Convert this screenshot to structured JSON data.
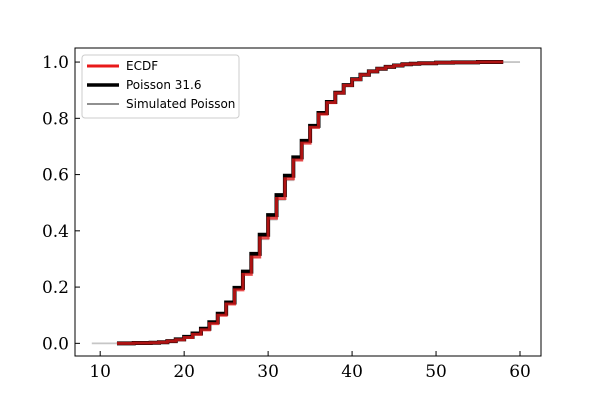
{
  "chart_data": {
    "type": "line",
    "title": "",
    "xlabel": "",
    "ylabel": "",
    "xlim": [
      7,
      62.5
    ],
    "ylim": [
      -0.045,
      1.05
    ],
    "xticks": [
      10,
      20,
      30,
      40,
      50,
      60
    ],
    "yticks": [
      0.0,
      0.2,
      0.4,
      0.6,
      0.8,
      1.0
    ],
    "xtick_labels": [
      "10",
      "20",
      "30",
      "40",
      "50",
      "60"
    ],
    "ytick_labels": [
      "0.0",
      "0.2",
      "0.4",
      "0.6",
      "0.8",
      "1.0"
    ],
    "grid": false,
    "legend_position": "top-left",
    "poisson_mean": 31.6,
    "series": [
      {
        "name": "Simulated Poisson",
        "color": "#808080",
        "style": "step",
        "x": [
          9,
          12,
          14,
          16,
          17,
          18,
          19,
          20,
          21,
          22,
          23,
          24,
          25,
          26,
          27,
          28,
          29,
          30,
          31,
          32,
          33,
          34,
          35,
          36,
          37,
          38,
          39,
          40,
          41,
          42,
          43,
          44,
          45,
          46,
          47,
          48,
          50,
          52,
          55,
          60
        ],
        "y": [
          0.0,
          0.0005,
          0.001,
          0.002,
          0.004,
          0.008,
          0.014,
          0.022,
          0.033,
          0.05,
          0.07,
          0.1,
          0.14,
          0.19,
          0.245,
          0.305,
          0.37,
          0.44,
          0.51,
          0.58,
          0.65,
          0.71,
          0.765,
          0.815,
          0.858,
          0.893,
          0.92,
          0.942,
          0.958,
          0.97,
          0.979,
          0.986,
          0.99,
          0.993,
          0.995,
          0.997,
          0.998,
          0.999,
          1.0,
          1.0
        ]
      },
      {
        "name": "Poisson 31.6",
        "color": "#000000",
        "style": "step",
        "x": [
          12,
          14,
          16,
          17,
          18,
          19,
          20,
          21,
          22,
          23,
          24,
          25,
          26,
          27,
          28,
          29,
          30,
          31,
          32,
          33,
          34,
          35,
          36,
          37,
          38,
          39,
          40,
          41,
          42,
          43,
          44,
          45,
          46,
          47,
          48,
          50,
          52,
          55,
          58
        ],
        "y": [
          0.0,
          0.001,
          0.002,
          0.004,
          0.008,
          0.014,
          0.023,
          0.035,
          0.052,
          0.075,
          0.105,
          0.145,
          0.197,
          0.255,
          0.318,
          0.386,
          0.456,
          0.527,
          0.596,
          0.661,
          0.72,
          0.773,
          0.819,
          0.858,
          0.891,
          0.918,
          0.939,
          0.955,
          0.967,
          0.976,
          0.983,
          0.988,
          0.992,
          0.994,
          0.996,
          0.998,
          0.999,
          1.0,
          1.0
        ]
      },
      {
        "name": "ECDF",
        "color": "#e8191a",
        "style": "step",
        "x": [
          12,
          14,
          16,
          17,
          18,
          19,
          20,
          21,
          22,
          23,
          24,
          25,
          26,
          27,
          28,
          29,
          30,
          31,
          32,
          33,
          34,
          35,
          36,
          37,
          38,
          39,
          40,
          41,
          42,
          43,
          44,
          45,
          46,
          47,
          48,
          50,
          52,
          55,
          58
        ],
        "y": [
          0.0,
          0.001,
          0.002,
          0.004,
          0.008,
          0.013,
          0.021,
          0.032,
          0.048,
          0.07,
          0.1,
          0.14,
          0.19,
          0.245,
          0.307,
          0.375,
          0.445,
          0.515,
          0.585,
          0.652,
          0.712,
          0.768,
          0.815,
          0.856,
          0.89,
          0.917,
          0.938,
          0.955,
          0.967,
          0.976,
          0.983,
          0.988,
          0.992,
          0.994,
          0.996,
          0.998,
          0.999,
          1.0,
          1.0
        ]
      }
    ],
    "legend": [
      {
        "label": "ECDF",
        "color": "#e8191a",
        "width": 3
      },
      {
        "label": "Poisson 31.6",
        "color": "#000000",
        "width": 3.5
      },
      {
        "label": "Simulated Poisson",
        "color": "#808080",
        "width": 1.8
      }
    ]
  }
}
